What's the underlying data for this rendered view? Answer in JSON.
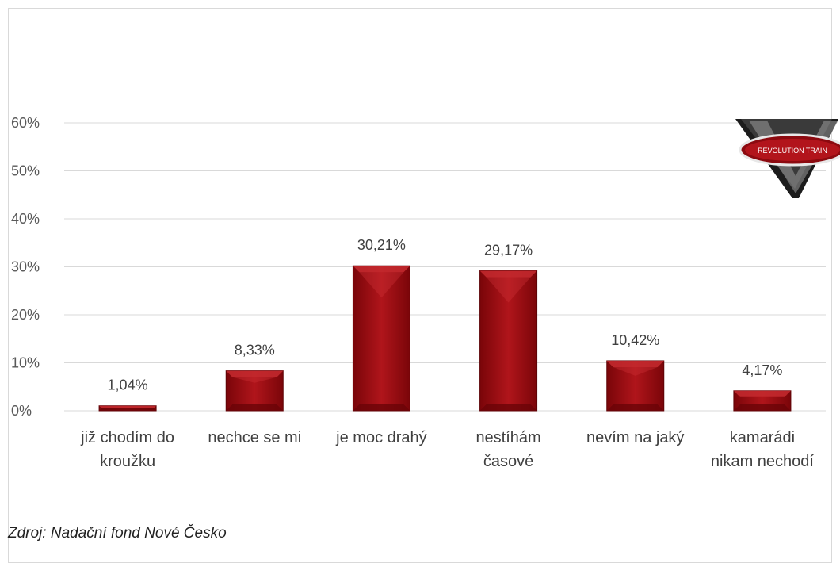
{
  "chart_data": {
    "type": "bar",
    "categories": [
      [
        "již chodím do",
        "kroužku"
      ],
      [
        "nechce se mi"
      ],
      [
        "je moc drahý"
      ],
      [
        "nestíhám",
        "časové"
      ],
      [
        "nevím na jaký"
      ],
      [
        "kamarádi",
        "nikam nechodí"
      ]
    ],
    "values": [
      1.04,
      8.33,
      30.21,
      29.17,
      10.42,
      4.17
    ],
    "value_labels": [
      "1,04%",
      "8,33%",
      "30,21%",
      "29,17%",
      "10,42%",
      "4,17%"
    ],
    "y_ticks": [
      "0%",
      "10%",
      "20%",
      "30%",
      "40%",
      "50%",
      "60%"
    ],
    "ylim": [
      0,
      60
    ],
    "grid": true,
    "bar_color": "#9b0a10"
  },
  "logo": {
    "text": "REVOLUTION TRAIN"
  },
  "source": "Zdroj: Nadační fond Nové Česko"
}
